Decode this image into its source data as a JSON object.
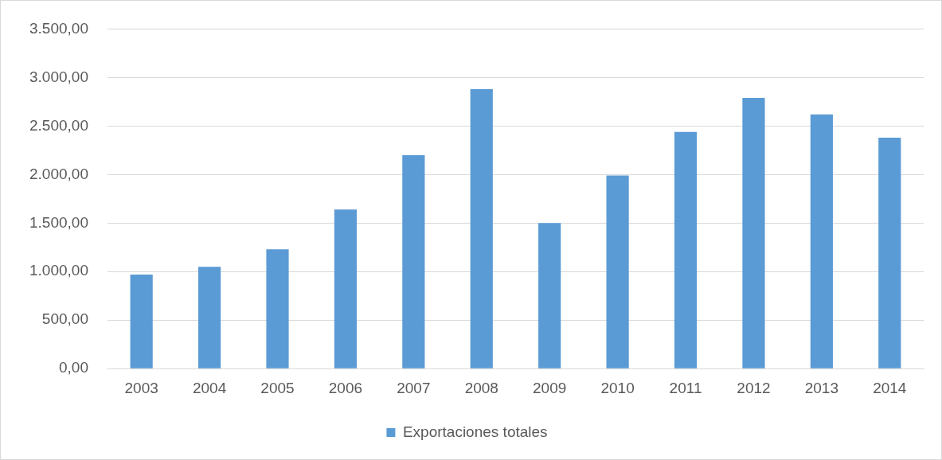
{
  "chart_data": {
    "type": "bar",
    "categories": [
      "2003",
      "2004",
      "2005",
      "2006",
      "2007",
      "2008",
      "2009",
      "2010",
      "2011",
      "2012",
      "2013",
      "2014"
    ],
    "series": [
      {
        "name": "Exportaciones totales",
        "color": "#5b9bd5",
        "values": [
          970,
          1050,
          1230,
          1640,
          2200,
          2880,
          1500,
          1990,
          2440,
          2790,
          2620,
          2380
        ]
      }
    ],
    "ylim": [
      0,
      3500
    ],
    "yticks": [
      {
        "value": 0,
        "label": "0,00"
      },
      {
        "value": 500,
        "label": "500,00"
      },
      {
        "value": 1000,
        "label": "1.000,00"
      },
      {
        "value": 1500,
        "label": "1.500,00"
      },
      {
        "value": 2000,
        "label": "2.000,00"
      },
      {
        "value": 2500,
        "label": "2.500,00"
      },
      {
        "value": 3000,
        "label": "3.000,00"
      },
      {
        "value": 3500,
        "label": "3.500,00"
      }
    ],
    "grid": "y",
    "legend": "bottom"
  }
}
